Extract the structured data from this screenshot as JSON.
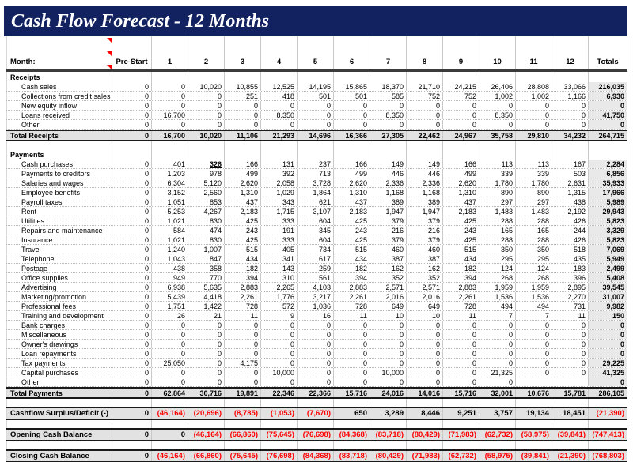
{
  "title": "Cash Flow Forecast - 12 Months",
  "colors": {
    "header_bar": "#12215f",
    "header_text": "#ffffff",
    "negative_value": "#ff0000",
    "total_row_fill": "#e2e2e2",
    "totals_column_fill": "#e9e9e9",
    "thick_border": "#1a1a1a",
    "gridline": "#c9c9c9"
  },
  "comment_indicators": {
    "icon": "comment-indicator",
    "count": 3
  },
  "table": {
    "month_label": "Month:",
    "headers": [
      "Pre-Start",
      "1",
      "2",
      "3",
      "4",
      "5",
      "6",
      "7",
      "8",
      "9",
      "10",
      "11",
      "12",
      "Totals"
    ],
    "rows": [
      {
        "type": "section_header",
        "label": "Receipts"
      },
      {
        "type": "data",
        "label": "Cash sales",
        "values": [
          "0",
          "0",
          "10,020",
          "10,855",
          "12,525",
          "14,195",
          "15,865",
          "18,370",
          "21,710",
          "24,215",
          "26,406",
          "28,808",
          "33,066",
          "216,035"
        ]
      },
      {
        "type": "data",
        "label": "Collections from credit sales",
        "values": [
          "0",
          "0",
          "0",
          "251",
          "418",
          "501",
          "501",
          "585",
          "752",
          "752",
          "1,002",
          "1,002",
          "1,166",
          "6,930"
        ]
      },
      {
        "type": "data",
        "label": "New equity inflow",
        "values": [
          "0",
          "0",
          "0",
          "0",
          "0",
          "0",
          "0",
          "0",
          "0",
          "0",
          "0",
          "0",
          "0",
          "0"
        ]
      },
      {
        "type": "data",
        "label": "Loans received",
        "values": [
          "0",
          "16,700",
          "0",
          "0",
          "8,350",
          "0",
          "0",
          "8,350",
          "0",
          "0",
          "8,350",
          "0",
          "0",
          "41,750"
        ]
      },
      {
        "type": "data",
        "label": "Other",
        "values": [
          "0",
          "0",
          "0",
          "0",
          "0",
          "0",
          "0",
          "0",
          "0",
          "0",
          "0",
          "0",
          "0",
          "0"
        ]
      },
      {
        "type": "total",
        "label": "Total Receipts",
        "values": [
          "0",
          "16,700",
          "10,020",
          "11,106",
          "21,293",
          "14,696",
          "16,366",
          "27,305",
          "22,462",
          "24,967",
          "35,758",
          "29,810",
          "34,232",
          "264,715"
        ]
      },
      {
        "type": "spacer"
      },
      {
        "type": "section_header",
        "label": "Payments"
      },
      {
        "type": "data",
        "label": "Cash purchases",
        "special_index": 2,
        "values": [
          "0",
          "401",
          "326",
          "166",
          "131",
          "237",
          "166",
          "149",
          "149",
          "166",
          "113",
          "113",
          "167",
          "2,284"
        ]
      },
      {
        "type": "data",
        "label": "Payments to creditors",
        "values": [
          "0",
          "1,203",
          "978",
          "499",
          "392",
          "713",
          "499",
          "446",
          "446",
          "499",
          "339",
          "339",
          "503",
          "6,856"
        ]
      },
      {
        "type": "data",
        "label": "Salaries and wages",
        "values": [
          "0",
          "6,304",
          "5,120",
          "2,620",
          "2,058",
          "3,728",
          "2,620",
          "2,336",
          "2,336",
          "2,620",
          "1,780",
          "1,780",
          "2,631",
          "35,933"
        ]
      },
      {
        "type": "data",
        "label": "Employee benefits",
        "values": [
          "0",
          "3,152",
          "2,560",
          "1,310",
          "1,029",
          "1,864",
          "1,310",
          "1,168",
          "1,168",
          "1,310",
          "890",
          "890",
          "1,315",
          "17,966"
        ]
      },
      {
        "type": "data",
        "label": "Payroll taxes",
        "values": [
          "0",
          "1,051",
          "853",
          "437",
          "343",
          "621",
          "437",
          "389",
          "389",
          "437",
          "297",
          "297",
          "438",
          "5,989"
        ]
      },
      {
        "type": "data",
        "label": "Rent",
        "values": [
          "0",
          "5,253",
          "4,267",
          "2,183",
          "1,715",
          "3,107",
          "2,183",
          "1,947",
          "1,947",
          "2,183",
          "1,483",
          "1,483",
          "2,192",
          "29,943"
        ]
      },
      {
        "type": "data",
        "label": "Utilities",
        "values": [
          "0",
          "1,021",
          "830",
          "425",
          "333",
          "604",
          "425",
          "379",
          "379",
          "425",
          "288",
          "288",
          "426",
          "5,823"
        ]
      },
      {
        "type": "data",
        "label": "Repairs and maintenance",
        "values": [
          "0",
          "584",
          "474",
          "243",
          "191",
          "345",
          "243",
          "216",
          "216",
          "243",
          "165",
          "165",
          "244",
          "3,329"
        ]
      },
      {
        "type": "data",
        "label": "Insurance",
        "values": [
          "0",
          "1,021",
          "830",
          "425",
          "333",
          "604",
          "425",
          "379",
          "379",
          "425",
          "288",
          "288",
          "426",
          "5,823"
        ]
      },
      {
        "type": "data",
        "label": "Travel",
        "values": [
          "0",
          "1,240",
          "1,007",
          "515",
          "405",
          "734",
          "515",
          "460",
          "460",
          "515",
          "350",
          "350",
          "518",
          "7,069"
        ]
      },
      {
        "type": "data",
        "label": "Telephone",
        "values": [
          "0",
          "1,043",
          "847",
          "434",
          "341",
          "617",
          "434",
          "387",
          "387",
          "434",
          "295",
          "295",
          "435",
          "5,949"
        ]
      },
      {
        "type": "data",
        "label": "Postage",
        "values": [
          "0",
          "438",
          "358",
          "182",
          "143",
          "259",
          "182",
          "162",
          "162",
          "182",
          "124",
          "124",
          "183",
          "2,499"
        ]
      },
      {
        "type": "data",
        "label": "Office supplies",
        "values": [
          "0",
          "949",
          "770",
          "394",
          "310",
          "561",
          "394",
          "352",
          "352",
          "394",
          "268",
          "268",
          "396",
          "5,408"
        ]
      },
      {
        "type": "data",
        "label": "Advertising",
        "values": [
          "0",
          "6,938",
          "5,635",
          "2,883",
          "2,265",
          "4,103",
          "2,883",
          "2,571",
          "2,571",
          "2,883",
          "1,959",
          "1,959",
          "2,895",
          "39,545"
        ]
      },
      {
        "type": "data",
        "label": "Marketing/promotion",
        "values": [
          "0",
          "5,439",
          "4,418",
          "2,261",
          "1,776",
          "3,217",
          "2,261",
          "2,016",
          "2,016",
          "2,261",
          "1,536",
          "1,536",
          "2,270",
          "31,007"
        ]
      },
      {
        "type": "data",
        "label": "Professional fees",
        "values": [
          "0",
          "1,751",
          "1,422",
          "728",
          "572",
          "1,036",
          "728",
          "649",
          "649",
          "728",
          "494",
          "494",
          "731",
          "9,982"
        ]
      },
      {
        "type": "data",
        "label": "Training and development",
        "values": [
          "0",
          "26",
          "21",
          "11",
          "9",
          "16",
          "11",
          "10",
          "10",
          "11",
          "7",
          "7",
          "11",
          "150"
        ]
      },
      {
        "type": "data",
        "label": "Bank charges",
        "values": [
          "0",
          "0",
          "0",
          "0",
          "0",
          "0",
          "0",
          "0",
          "0",
          "0",
          "0",
          "0",
          "0",
          "0"
        ]
      },
      {
        "type": "data",
        "label": "Miscellaneous",
        "values": [
          "0",
          "0",
          "0",
          "0",
          "0",
          "0",
          "0",
          "0",
          "0",
          "0",
          "0",
          "0",
          "0",
          "0"
        ]
      },
      {
        "type": "data",
        "label": "Owner's drawings",
        "values": [
          "0",
          "0",
          "0",
          "0",
          "0",
          "0",
          "0",
          "0",
          "0",
          "0",
          "0",
          "0",
          "0",
          "0"
        ]
      },
      {
        "type": "data",
        "label": "Loan repayments",
        "values": [
          "0",
          "0",
          "0",
          "0",
          "0",
          "0",
          "0",
          "0",
          "0",
          "0",
          "0",
          "0",
          "0",
          "0"
        ]
      },
      {
        "type": "data",
        "label": "Tax payments",
        "values": [
          "0",
          "25,050",
          "0",
          "4,175",
          "0",
          "0",
          "0",
          "0",
          "0",
          "0",
          "0",
          "0",
          "0",
          "29,225"
        ]
      },
      {
        "type": "data",
        "label": "Capital purchases",
        "values": [
          "0",
          "0",
          "0",
          "0",
          "10,000",
          "0",
          "0",
          "10,000",
          "0",
          "0",
          "21,325",
          "0",
          "0",
          "41,325"
        ]
      },
      {
        "type": "data",
        "label": "Other",
        "values": [
          "0",
          "0",
          "0",
          "0",
          "0",
          "0",
          "0",
          "0",
          "0",
          "0",
          "0",
          "",
          "",
          "0"
        ]
      },
      {
        "type": "total",
        "label": "Total Payments",
        "values": [
          "0",
          "62,864",
          "30,716",
          "19,891",
          "22,346",
          "22,366",
          "15,716",
          "24,016",
          "14,016",
          "15,716",
          "32,001",
          "10,676",
          "15,781",
          "286,105"
        ]
      },
      {
        "type": "spacer"
      },
      {
        "type": "summary",
        "label": "Cashflow Surplus/Deficit (-)",
        "values": [
          "0",
          "(46,164)",
          "(20,696)",
          "(8,785)",
          "(1,053)",
          "(7,670)",
          "650",
          "3,289",
          "8,446",
          "9,251",
          "3,757",
          "19,134",
          "18,451",
          "(21,390)"
        ]
      },
      {
        "type": "spacer"
      },
      {
        "type": "summary",
        "label": "Opening Cash Balance",
        "values": [
          "0",
          "0",
          "(46,164)",
          "(66,860)",
          "(75,645)",
          "(76,698)",
          "(84,368)",
          "(83,718)",
          "(80,429)",
          "(71,983)",
          "(62,732)",
          "(58,975)",
          "(39,841)",
          "(747,413)"
        ]
      },
      {
        "type": "spacer"
      },
      {
        "type": "summary",
        "label": "Closing Cash Balance",
        "values": [
          "0",
          "(46,164)",
          "(66,860)",
          "(75,645)",
          "(76,698)",
          "(84,368)",
          "(83,718)",
          "(80,429)",
          "(71,983)",
          "(62,732)",
          "(58,975)",
          "(39,841)",
          "(21,390)",
          "(768,803)"
        ]
      }
    ]
  }
}
